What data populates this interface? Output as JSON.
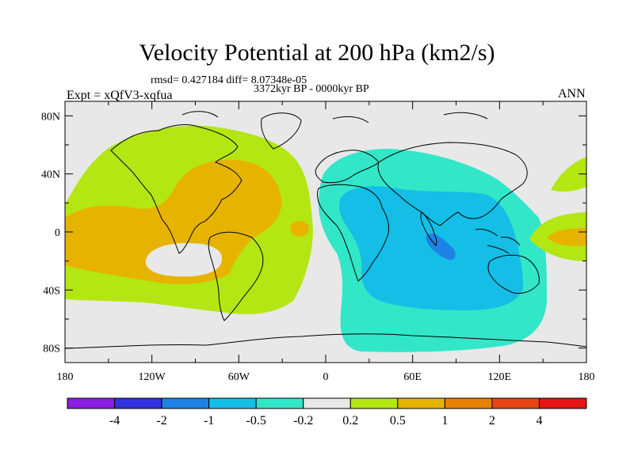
{
  "title": "Velocity Potential at 200 hPa (km2/s)",
  "stats_line": "rmsd= 0.427184 diff= 8.07348e-05",
  "period_line": "3372kyr BP - 0000kyr BP",
  "experiment_label": "Expt = xQfV3-xqfua",
  "season_label": "ANN",
  "map": {
    "lat_ticks": [
      "80N",
      "40N",
      "0",
      "40S",
      "80S"
    ],
    "lon_ticks": [
      "180",
      "120W",
      "60W",
      "0",
      "60E",
      "120E",
      "180"
    ],
    "lon_range": [
      -180,
      180
    ],
    "lat_range": [
      -90,
      90
    ],
    "background_color": "#e8e8e8",
    "coastline_color": "#000000"
  },
  "colorbar": {
    "labels": [
      "-4",
      "-2",
      "-1",
      "-0.5",
      "-0.2",
      "0.2",
      "0.5",
      "1",
      "2",
      "4"
    ],
    "colors": [
      "#8c1ee6",
      "#3232e0",
      "#1e82e6",
      "#14bee6",
      "#32e6c8",
      "#e8e8e8",
      "#b4e614",
      "#e6b400",
      "#e68200",
      "#e64614",
      "#e61414"
    ]
  },
  "regions": [
    {
      "name": "western-hemisphere-positive-0.2",
      "color": "#b4e614"
    },
    {
      "name": "western-hemisphere-positive-0.5",
      "color": "#e6b400"
    },
    {
      "name": "eastern-hemisphere-negative-0.2",
      "color": "#32e6c8"
    },
    {
      "name": "eastern-hemisphere-negative-0.5",
      "color": "#14bee6"
    },
    {
      "name": "indian-ocean-negative-1",
      "color": "#1e82e6"
    }
  ]
}
